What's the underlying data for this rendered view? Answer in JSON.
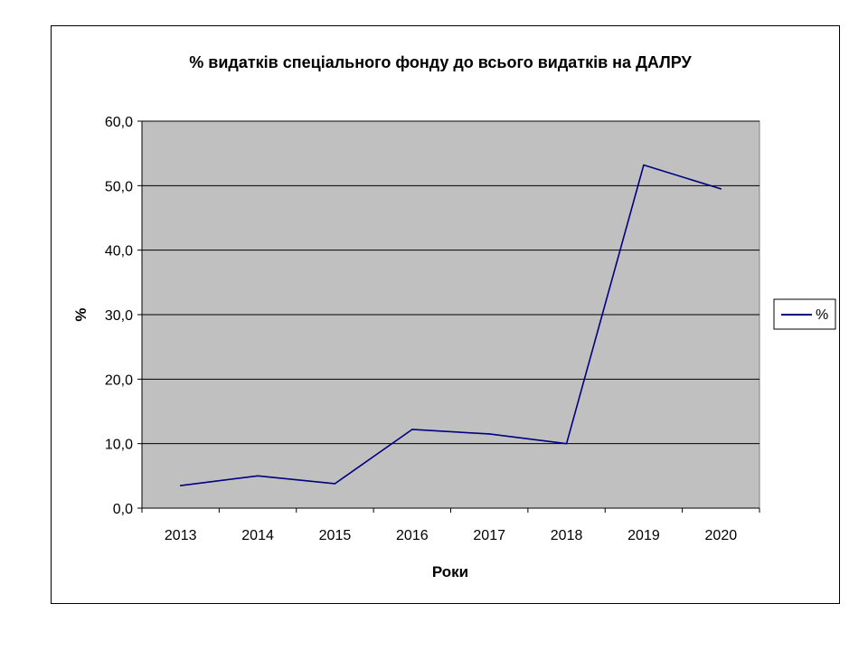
{
  "chart_data": {
    "type": "line",
    "title": "% видатків спеціального фонду до всього видатків на ДАЛРУ",
    "xlabel": "Роки",
    "ylabel": "%",
    "categories": [
      "2013",
      "2014",
      "2015",
      "2016",
      "2017",
      "2018",
      "2019",
      "2020"
    ],
    "series": [
      {
        "name": "%",
        "values": [
          3.5,
          5.0,
          3.8,
          12.2,
          11.5,
          10.0,
          53.2,
          49.5
        ],
        "color": "#000080"
      }
    ],
    "ylim": [
      0,
      60
    ],
    "yticks": [
      0,
      10,
      20,
      30,
      40,
      50,
      60
    ],
    "ytick_labels": [
      "0,0",
      "10,0",
      "20,0",
      "30,0",
      "40,0",
      "50,0",
      "60,0"
    ],
    "grid": true,
    "plot_background": "#c0c0c0",
    "legend_position": "right"
  }
}
